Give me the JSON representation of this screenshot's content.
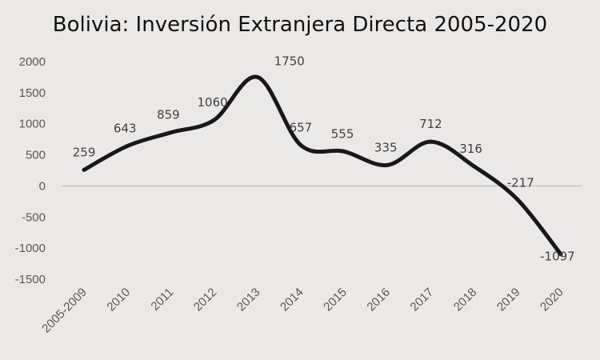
{
  "chart_data": {
    "type": "line",
    "title": "Bolivia: Inversión Extranjera Directa 2005-2020",
    "categories": [
      "2005-2009",
      "2010",
      "2011",
      "2012",
      "2013",
      "2014",
      "2015",
      "2016",
      "2017",
      "2018",
      "2019",
      "2020"
    ],
    "series": [
      {
        "values": [
          259,
          643,
          859,
          1060,
          1750,
          657,
          555,
          335,
          712,
          316,
          -217,
          -1097
        ]
      }
    ],
    "data_labels": [
      "259",
      "643",
      "859",
      "1060",
      "1750",
      "657",
      "555",
      "335",
      "712",
      "316",
      "-217",
      "-1097"
    ],
    "y_ticks": [
      "2000",
      "1500",
      "1000",
      "500",
      "0",
      "-500",
      "-1000",
      "-1500"
    ],
    "ylim": [
      -1500,
      2000
    ],
    "xlabel": "",
    "ylabel": "",
    "legend": "none",
    "line_color": "#1a161b",
    "zero_line_color": "#b8b6b4",
    "background": "#ebe9e7"
  }
}
